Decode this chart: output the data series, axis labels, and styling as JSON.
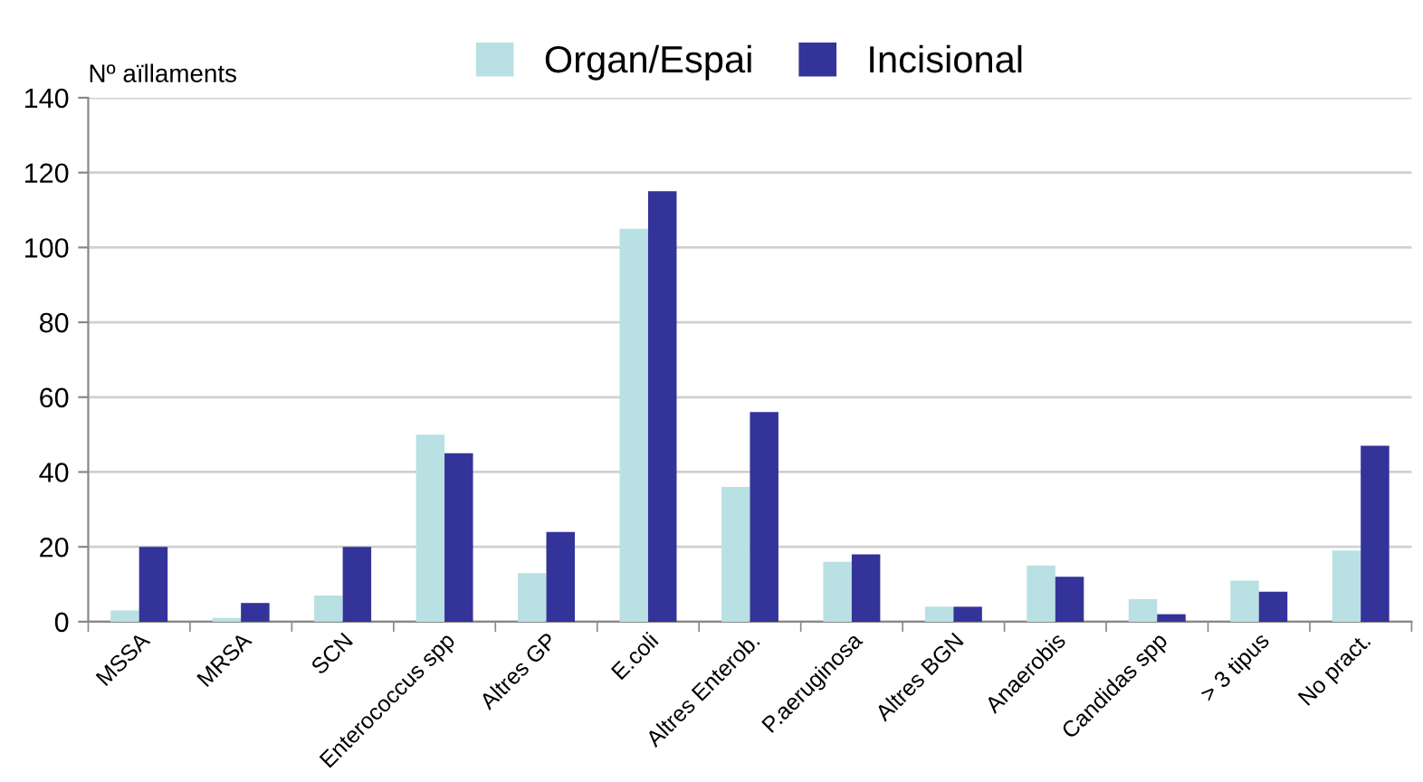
{
  "chart_data": {
    "type": "bar",
    "ylabel": "Nº aïllaments",
    "categories": [
      "MSSA",
      "MRSA",
      "SCN",
      "Enterococcus spp",
      "Altres GP",
      "E.coli",
      "Altres Enterob.",
      "P.aeruginosa",
      "Altres BGN",
      "Anaerobis",
      "Candidas spp",
      "> 3 tipus",
      "No pract."
    ],
    "series": [
      {
        "name": "Organ/Espai",
        "color": "#b9e0e3",
        "values": [
          3,
          1,
          7,
          50,
          13,
          105,
          36,
          16,
          4,
          15,
          6,
          11,
          19
        ]
      },
      {
        "name": "Incisional",
        "color": "#343399",
        "values": [
          20,
          5,
          20,
          45,
          24,
          115,
          56,
          18,
          4,
          12,
          2,
          8,
          47
        ]
      }
    ],
    "ylim": [
      0,
      140
    ],
    "yticks": [
      0,
      20,
      40,
      60,
      80,
      100,
      120,
      140
    ],
    "grid": "y",
    "legend": "top"
  }
}
